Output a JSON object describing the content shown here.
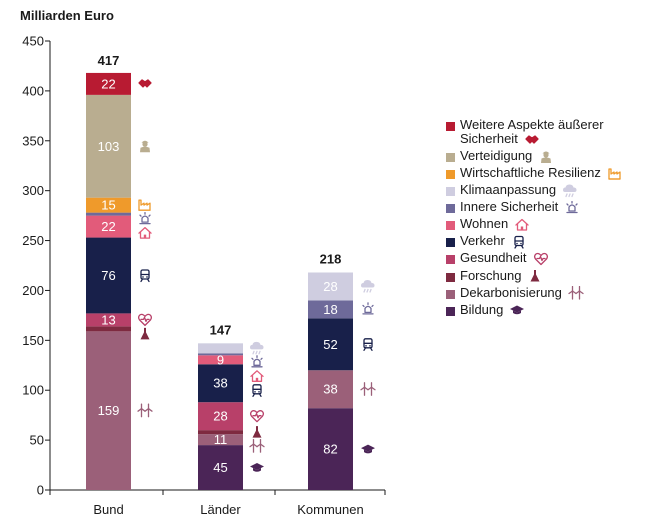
{
  "chart_data": {
    "type": "stacked-bar",
    "ylabel": "Milliarden Euro",
    "ylim": [
      0,
      450
    ],
    "yticks": [
      0,
      50,
      100,
      150,
      200,
      250,
      300,
      350,
      400,
      450
    ],
    "categories": [
      "Bund",
      "Länder",
      "Kommunen"
    ],
    "totals": [
      417,
      147,
      218
    ],
    "series": [
      {
        "name": "Bildung",
        "color": "#4b2557",
        "icon": "graduation-cap-icon",
        "values": [
          0,
          45,
          82
        ]
      },
      {
        "name": "Dekarbonisierung",
        "color": "#9b6079",
        "icon": "wind-turbine-icon",
        "values": [
          159,
          11,
          38
        ]
      },
      {
        "name": "Forschung",
        "color": "#7e2a40",
        "icon": "flask-icon",
        "values": [
          5,
          4,
          0
        ]
      },
      {
        "name": "Gesundheit",
        "color": "#b84069",
        "icon": "heart-pulse-icon",
        "values": [
          13,
          28,
          0
        ]
      },
      {
        "name": "Verkehr",
        "color": "#18204a",
        "icon": "tram-icon",
        "values": [
          76,
          38,
          52
        ]
      },
      {
        "name": "Wohnen",
        "color": "#e25b7a",
        "icon": "house-icon",
        "values": [
          22,
          9,
          0
        ]
      },
      {
        "name": "Innere Sicherheit",
        "color": "#6e6a9a",
        "icon": "siren-icon",
        "values": [
          3,
          2,
          18
        ]
      },
      {
        "name": "Klimaanpassung",
        "color": "#cfcde0",
        "icon": "cloud-rain-icon",
        "values": [
          0,
          10,
          28
        ]
      },
      {
        "name": "Wirtschaftliche Resilienz",
        "color": "#ef9a2b",
        "icon": "factory-icon",
        "values": [
          15,
          0,
          0
        ]
      },
      {
        "name": "Verteidigung",
        "color": "#b9ad90",
        "icon": "soldier-icon",
        "values": [
          103,
          0,
          0
        ]
      },
      {
        "name": "Weitere Aspekte äußerer Sicherheit",
        "color": "#b81b32",
        "icon": "handshake-icon",
        "values": [
          22,
          0,
          0
        ]
      }
    ],
    "segment_labels": [
      {
        "category": 0,
        "series": "Dekarbonisierung",
        "text": "159"
      },
      {
        "category": 0,
        "series": "Gesundheit",
        "text": "13"
      },
      {
        "category": 0,
        "series": "Verkehr",
        "text": "76"
      },
      {
        "category": 0,
        "series": "Wohnen",
        "text": "22"
      },
      {
        "category": 0,
        "series": "Wirtschaftliche Resilienz",
        "text": "15"
      },
      {
        "category": 0,
        "series": "Verteidigung",
        "text": "103"
      },
      {
        "category": 0,
        "series": "Weitere Aspekte äußerer Sicherheit",
        "text": "22"
      },
      {
        "category": 1,
        "series": "Bildung",
        "text": "45"
      },
      {
        "category": 1,
        "series": "Dekarbonisierung",
        "text": "11"
      },
      {
        "category": 1,
        "series": "Gesundheit",
        "text": "28"
      },
      {
        "category": 1,
        "series": "Verkehr",
        "text": "38"
      },
      {
        "category": 1,
        "series": "Wohnen",
        "text": "9"
      },
      {
        "category": 2,
        "series": "Bildung",
        "text": "82"
      },
      {
        "category": 2,
        "series": "Dekarbonisierung",
        "text": "38"
      },
      {
        "category": 2,
        "series": "Verkehr",
        "text": "52"
      },
      {
        "category": 2,
        "series": "Innere Sicherheit",
        "text": "18"
      },
      {
        "category": 2,
        "series": "Klimaanpassung",
        "text": "28"
      }
    ],
    "bar_icons": [
      {
        "category": 0,
        "series": [
          "Weitere Aspekte äußerer Sicherheit",
          "Verteidigung",
          "Wirtschaftliche Resilienz",
          "Innere Sicherheit",
          "Wohnen",
          "Verkehr",
          "Gesundheit",
          "Forschung",
          "Dekarbonisierung"
        ]
      },
      {
        "category": 1,
        "series": [
          "Klimaanpassung",
          "Innere Sicherheit",
          "Wohnen",
          "Verkehr",
          "Gesundheit",
          "Forschung",
          "Dekarbonisierung",
          "Bildung"
        ]
      },
      {
        "category": 2,
        "series": [
          "Klimaanpassung",
          "Innere Sicherheit",
          "Verkehr",
          "Dekarbonisierung",
          "Bildung"
        ]
      }
    ],
    "legend": [
      "Weitere Aspekte äußerer Sicherheit",
      "Verteidigung",
      "Wirtschaftliche Resilienz",
      "Klimaanpassung",
      "Innere Sicherheit",
      "Wohnen",
      "Verkehr",
      "Gesundheit",
      "Forschung",
      "Dekarbonisierung",
      "Bildung"
    ],
    "legend_position": "right"
  }
}
